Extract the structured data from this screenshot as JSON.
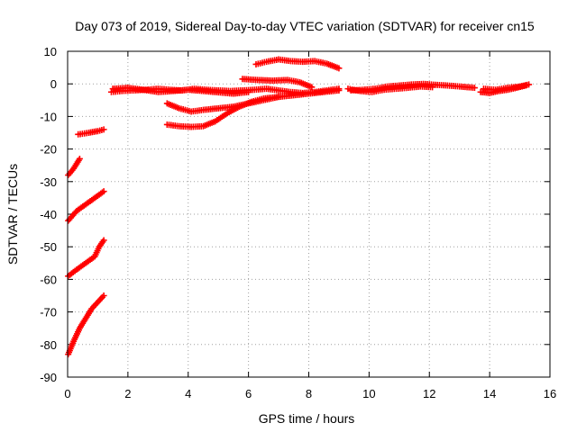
{
  "chart_data": {
    "type": "scatter",
    "title": "Day 073 of 2019, Sidereal Day-to-day VTEC variation (SDTVAR) for receiver cn15",
    "xlabel": "GPS time / hours",
    "ylabel": "SDTVAR / TECUs",
    "xlim": [
      0,
      16
    ],
    "ylim": [
      -90,
      10
    ],
    "xticks": [
      0,
      2,
      4,
      6,
      8,
      10,
      12,
      14,
      16
    ],
    "yticks": [
      -90,
      -80,
      -70,
      -60,
      -50,
      -40,
      -30,
      -20,
      -10,
      0,
      10
    ],
    "grid": true,
    "marker": "plus",
    "color": "#ff0000",
    "tracks": [
      [
        [
          0.02,
          -83
        ],
        [
          0.2,
          -79
        ],
        [
          0.4,
          -75
        ],
        [
          0.6,
          -72
        ],
        [
          0.8,
          -69
        ],
        [
          1.0,
          -67
        ],
        [
          1.2,
          -65
        ]
      ],
      [
        [
          0.02,
          -59
        ],
        [
          0.3,
          -57
        ],
        [
          0.6,
          -55
        ],
        [
          0.9,
          -53
        ],
        [
          1.05,
          -50
        ],
        [
          1.2,
          -48
        ]
      ],
      [
        [
          0.02,
          -42
        ],
        [
          0.3,
          -39
        ],
        [
          0.6,
          -37
        ],
        [
          0.9,
          -35
        ],
        [
          1.2,
          -33
        ]
      ],
      [
        [
          0.02,
          -28
        ],
        [
          0.2,
          -26
        ],
        [
          0.4,
          -23
        ]
      ],
      [
        [
          0.35,
          -15.5
        ],
        [
          0.7,
          -15
        ],
        [
          1.0,
          -14.5
        ],
        [
          1.2,
          -14
        ]
      ],
      [
        [
          1.45,
          -2.5
        ],
        [
          1.8,
          -2.2
        ],
        [
          2.2,
          -2
        ],
        [
          2.6,
          -1.8
        ],
        [
          3.0,
          -1.5
        ],
        [
          3.4,
          -1.8
        ],
        [
          3.8,
          -2
        ],
        [
          4.2,
          -1.5
        ],
        [
          4.6,
          -1.8
        ],
        [
          5.0,
          -2
        ],
        [
          5.4,
          -2.2
        ],
        [
          5.8,
          -2
        ],
        [
          6.2,
          -1.8
        ],
        [
          6.6,
          -1.5
        ],
        [
          7.0,
          -2
        ],
        [
          7.4,
          -2.5
        ],
        [
          7.8,
          -2.8
        ],
        [
          8.2,
          -2.5
        ],
        [
          8.6,
          -2
        ],
        [
          9.0,
          -1.5
        ]
      ],
      [
        [
          1.5,
          -1.5
        ],
        [
          2.0,
          -1.2
        ],
        [
          2.5,
          -1.8
        ],
        [
          3.0,
          -2.5
        ],
        [
          3.5,
          -2.2
        ],
        [
          4.0,
          -1.8
        ],
        [
          4.5,
          -2.2
        ],
        [
          5.0,
          -2.6
        ],
        [
          5.5,
          -3
        ],
        [
          6.0,
          -2.5
        ]
      ],
      [
        [
          3.3,
          -6
        ],
        [
          3.7,
          -7.5
        ],
        [
          4.1,
          -8.5
        ],
        [
          4.5,
          -8
        ],
        [
          5.0,
          -7.5
        ],
        [
          5.5,
          -7
        ],
        [
          6.0,
          -6
        ],
        [
          6.5,
          -5
        ],
        [
          7.0,
          -4
        ],
        [
          7.5,
          -3.5
        ],
        [
          8.0,
          -3
        ],
        [
          8.5,
          -2.5
        ],
        [
          9.0,
          -2
        ]
      ],
      [
        [
          3.3,
          -12.5
        ],
        [
          3.7,
          -13
        ],
        [
          4.1,
          -13.2
        ],
        [
          4.5,
          -13
        ],
        [
          4.9,
          -11.5
        ],
        [
          5.3,
          -9
        ],
        [
          5.7,
          -7
        ],
        [
          6.1,
          -5.5
        ],
        [
          6.5,
          -4.5
        ],
        [
          7.0,
          -4
        ]
      ],
      [
        [
          5.8,
          1.5
        ],
        [
          6.3,
          1.2
        ],
        [
          6.8,
          1
        ],
        [
          7.3,
          1.2
        ],
        [
          7.7,
          0.5
        ],
        [
          8.1,
          -1
        ]
      ],
      [
        [
          6.25,
          6
        ],
        [
          6.6,
          6.8
        ],
        [
          7.0,
          7.5
        ],
        [
          7.4,
          7
        ],
        [
          7.8,
          6.8
        ],
        [
          8.2,
          7
        ],
        [
          8.6,
          6.2
        ],
        [
          9.0,
          4.8
        ]
      ],
      [
        [
          9.4,
          -2
        ],
        [
          9.8,
          -1.8
        ],
        [
          10.2,
          -1.5
        ],
        [
          10.6,
          -0.8
        ],
        [
          11.0,
          -0.5
        ],
        [
          11.4,
          -0.2
        ],
        [
          11.8,
          0
        ],
        [
          12.2,
          -0.3
        ],
        [
          12.6,
          -0.5
        ],
        [
          13.0,
          -0.8
        ],
        [
          13.5,
          -1.2
        ]
      ],
      [
        [
          9.3,
          -1.5
        ],
        [
          9.7,
          -2.2
        ],
        [
          10.1,
          -2.5
        ],
        [
          10.5,
          -1.8
        ],
        [
          10.9,
          -1.5
        ],
        [
          11.3,
          -1.2
        ],
        [
          11.7,
          -0.8
        ],
        [
          12.1,
          -1
        ]
      ],
      [
        [
          13.7,
          -2.5
        ],
        [
          14.0,
          -2.8
        ],
        [
          14.3,
          -2.2
        ],
        [
          14.6,
          -1.8
        ],
        [
          14.9,
          -1.2
        ],
        [
          15.2,
          -0.5
        ]
      ],
      [
        [
          13.8,
          -1.5
        ],
        [
          14.2,
          -1.8
        ],
        [
          14.6,
          -1.2
        ],
        [
          15.0,
          -0.8
        ],
        [
          15.3,
          -0.2
        ]
      ]
    ]
  }
}
